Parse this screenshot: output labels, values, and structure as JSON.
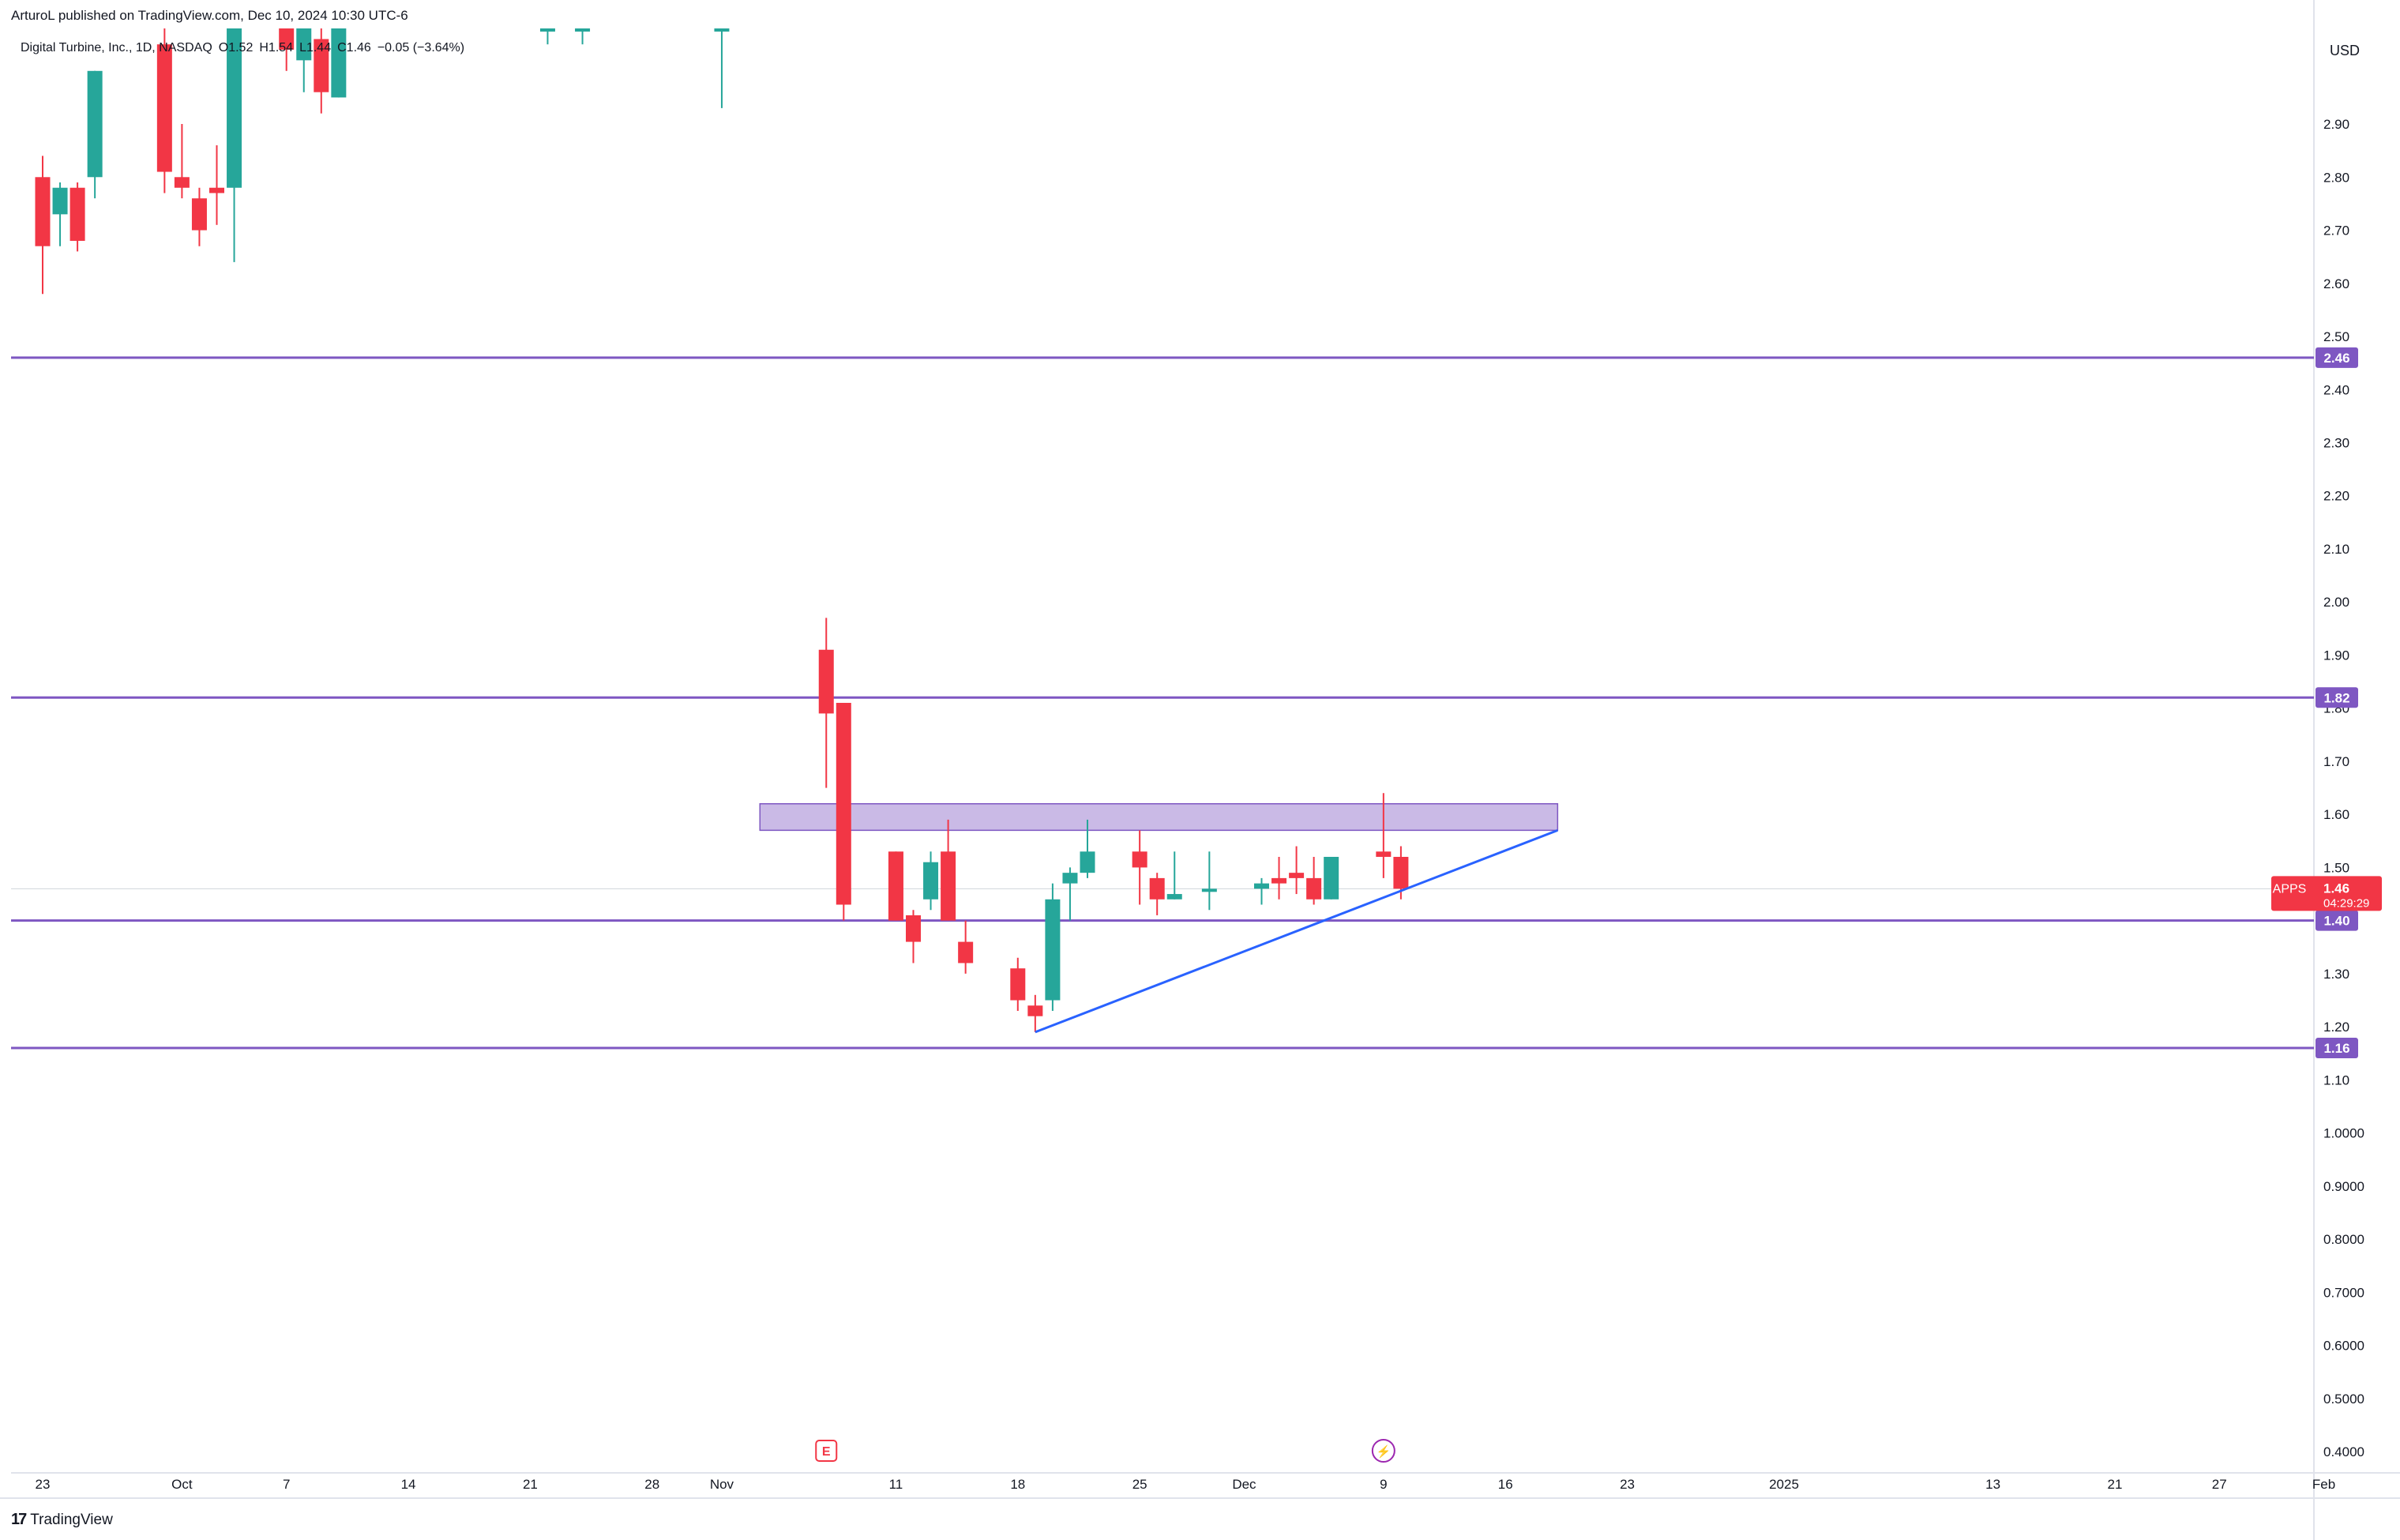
{
  "header": {
    "published": "ArturoL published on TradingView.com, Dec 10, 2024 10:30 UTC-6"
  },
  "legend": {
    "symbol_name": "Digital Turbine, Inc., 1D, NASDAQ",
    "open": "O1.52",
    "high": "H1.54",
    "low": "L1.44",
    "close": "C1.46",
    "change": "−0.05 (−3.64%)"
  },
  "currency": "USD",
  "footer": {
    "brand": "TradingView"
  },
  "colors": {
    "up": "#26a69a",
    "down": "#f23645",
    "level": "#7e57c2",
    "trend": "#2962ff",
    "zone": "#b39ddb"
  },
  "chart_data": {
    "type": "candlestick",
    "symbol": "APPS",
    "timeframe": "1D",
    "ylim": [
      0.36,
      3.08
    ],
    "y_ticks": [
      "2.90",
      "2.80",
      "2.70",
      "2.60",
      "2.50",
      "2.40",
      "2.30",
      "2.20",
      "2.10",
      "2.00",
      "1.90",
      "1.80",
      "1.70",
      "1.60",
      "1.50",
      "1.30",
      "1.20",
      "1.10",
      "1.0000",
      "0.9000",
      "0.8000",
      "0.7000",
      "0.6000",
      "0.5000",
      "0.4000"
    ],
    "x_ticks": [
      {
        "label": "23",
        "day": 0
      },
      {
        "label": "Oct",
        "day": 8
      },
      {
        "label": "7",
        "day": 14
      },
      {
        "label": "14",
        "day": 21
      },
      {
        "label": "21",
        "day": 28
      },
      {
        "label": "28",
        "day": 35
      },
      {
        "label": "Nov",
        "day": 39
      },
      {
        "label": "11",
        "day": 49
      },
      {
        "label": "18",
        "day": 56
      },
      {
        "label": "25",
        "day": 63
      },
      {
        "label": "Dec",
        "day": 69
      },
      {
        "label": "9",
        "day": 77
      },
      {
        "label": "16",
        "day": 84
      },
      {
        "label": "23",
        "day": 91
      },
      {
        "label": "2025",
        "day": 100
      },
      {
        "label": "13",
        "day": 112
      },
      {
        "label": "21",
        "day": 119
      },
      {
        "label": "27",
        "day": 125
      },
      {
        "label": "Feb",
        "day": 131
      }
    ],
    "candles": [
      {
        "date": "2024-09-20",
        "open": 2.88,
        "high": 2.9,
        "low": 2.77,
        "close": 2.8
      },
      {
        "date": "2024-09-23",
        "open": 2.8,
        "high": 2.84,
        "low": 2.58,
        "close": 2.67
      },
      {
        "date": "2024-09-24",
        "open": 2.73,
        "high": 2.79,
        "low": 2.67,
        "close": 2.78
      },
      {
        "date": "2024-09-25",
        "open": 2.78,
        "high": 2.79,
        "low": 2.66,
        "close": 2.68
      },
      {
        "date": "2024-09-26",
        "open": 2.8,
        "high": 3.0,
        "low": 2.76,
        "close": 3.0
      },
      {
        "date": "2024-09-30",
        "open": 3.05,
        "high": 3.08,
        "low": 2.77,
        "close": 2.81
      },
      {
        "date": "2024-10-01",
        "open": 2.8,
        "high": 2.9,
        "low": 2.76,
        "close": 2.78
      },
      {
        "date": "2024-10-02",
        "open": 2.76,
        "high": 2.78,
        "low": 2.67,
        "close": 2.7
      },
      {
        "date": "2024-10-03",
        "open": 2.78,
        "high": 2.86,
        "low": 2.71,
        "close": 2.77
      },
      {
        "date": "2024-10-04",
        "open": 2.78,
        "high": 3.08,
        "low": 2.64,
        "close": 3.08
      },
      {
        "date": "2024-10-07",
        "open": 3.08,
        "high": 3.08,
        "low": 3.0,
        "close": 3.04
      },
      {
        "date": "2024-10-08",
        "open": 3.02,
        "high": 3.08,
        "low": 2.96,
        "close": 3.08
      },
      {
        "date": "2024-10-09",
        "open": 3.06,
        "high": 3.08,
        "low": 2.92,
        "close": 2.96
      },
      {
        "date": "2024-10-10",
        "open": 2.95,
        "high": 3.08,
        "low": 2.95,
        "close": 3.08
      },
      {
        "date": "2024-10-22",
        "open": 3.08,
        "high": 3.08,
        "low": 3.05,
        "close": 3.08
      },
      {
        "date": "2024-10-24",
        "open": 3.08,
        "high": 3.08,
        "low": 3.05,
        "close": 3.08
      },
      {
        "date": "2024-11-01",
        "open": 3.08,
        "high": 3.08,
        "low": 2.93,
        "close": 3.08
      },
      {
        "date": "2024-11-07",
        "open": 1.91,
        "high": 1.97,
        "low": 1.65,
        "close": 1.79
      },
      {
        "date": "2024-11-08",
        "open": 1.81,
        "high": 1.81,
        "low": 1.4,
        "close": 1.43
      },
      {
        "date": "2024-11-11",
        "open": 1.53,
        "high": 1.53,
        "low": 1.4,
        "close": 1.4
      },
      {
        "date": "2024-11-12",
        "open": 1.41,
        "high": 1.42,
        "low": 1.32,
        "close": 1.36
      },
      {
        "date": "2024-11-13",
        "open": 1.44,
        "high": 1.53,
        "low": 1.42,
        "close": 1.51
      },
      {
        "date": "2024-11-14",
        "open": 1.53,
        "high": 1.59,
        "low": 1.4,
        "close": 1.4
      },
      {
        "date": "2024-11-15",
        "open": 1.36,
        "high": 1.4,
        "low": 1.3,
        "close": 1.32
      },
      {
        "date": "2024-11-18",
        "open": 1.31,
        "high": 1.33,
        "low": 1.23,
        "close": 1.25
      },
      {
        "date": "2024-11-19",
        "open": 1.24,
        "high": 1.26,
        "low": 1.19,
        "close": 1.22
      },
      {
        "date": "2024-11-20",
        "open": 1.25,
        "high": 1.47,
        "low": 1.23,
        "close": 1.44
      },
      {
        "date": "2024-11-21",
        "open": 1.47,
        "high": 1.5,
        "low": 1.4,
        "close": 1.49
      },
      {
        "date": "2024-11-22",
        "open": 1.49,
        "high": 1.59,
        "low": 1.48,
        "close": 1.53
      },
      {
        "date": "2024-11-25",
        "open": 1.53,
        "high": 1.57,
        "low": 1.43,
        "close": 1.5
      },
      {
        "date": "2024-11-26",
        "open": 1.48,
        "high": 1.49,
        "low": 1.41,
        "close": 1.44
      },
      {
        "date": "2024-11-27",
        "open": 1.44,
        "high": 1.53,
        "low": 1.44,
        "close": 1.45
      },
      {
        "date": "2024-11-29",
        "open": 1.46,
        "high": 1.53,
        "low": 1.42,
        "close": 1.46
      },
      {
        "date": "2024-12-02",
        "open": 1.46,
        "high": 1.48,
        "low": 1.43,
        "close": 1.47
      },
      {
        "date": "2024-12-03",
        "open": 1.48,
        "high": 1.52,
        "low": 1.44,
        "close": 1.47
      },
      {
        "date": "2024-12-04",
        "open": 1.49,
        "high": 1.54,
        "low": 1.45,
        "close": 1.48
      },
      {
        "date": "2024-12-05",
        "open": 1.48,
        "high": 1.52,
        "low": 1.43,
        "close": 1.44
      },
      {
        "date": "2024-12-06",
        "open": 1.44,
        "high": 1.52,
        "low": 1.44,
        "close": 1.52
      },
      {
        "date": "2024-12-09",
        "open": 1.53,
        "high": 1.64,
        "low": 1.48,
        "close": 1.52
      },
      {
        "date": "2024-12-10",
        "open": 1.52,
        "high": 1.54,
        "low": 1.44,
        "close": 1.46
      }
    ],
    "horizontal_levels": [
      2.46,
      1.82,
      1.4,
      1.16
    ],
    "current_price": {
      "symbol": "APPS",
      "price": "1.46",
      "countdown": "04:29:29"
    },
    "zone": {
      "from_date": "2024-11-07",
      "to_date": "2024-12-19",
      "low": 1.57,
      "high": 1.62
    },
    "trendline": {
      "from": {
        "date": "2024-11-19",
        "price": 1.19
      },
      "to": {
        "date": "2024-12-19",
        "price": 1.57
      }
    },
    "events": [
      {
        "type": "earnings",
        "symbol": "E",
        "date": "2024-11-07"
      },
      {
        "type": "dividend-or-split",
        "symbol": "⚡",
        "date": "2024-12-09"
      }
    ]
  }
}
